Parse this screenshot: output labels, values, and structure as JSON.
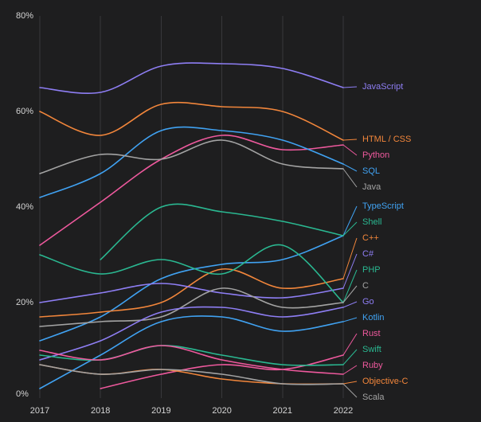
{
  "chart_data": {
    "type": "line",
    "title": "",
    "xlabel": "",
    "ylabel": "",
    "x": [
      2017,
      2018,
      2019,
      2020,
      2021,
      2022
    ],
    "ylim": [
      0,
      80
    ],
    "y_ticks": [
      0,
      20,
      40,
      60,
      80
    ],
    "y_tick_labels": [
      "0%",
      "20%",
      "40%",
      "60%",
      "80%"
    ],
    "grid": true,
    "series": [
      {
        "name": "JavaScript",
        "color": "#8e7ef4",
        "values": [
          65,
          64,
          69.5,
          70,
          69,
          65
        ]
      },
      {
        "name": "HTML / CSS",
        "color": "#f2863b",
        "values": [
          60,
          55,
          61.5,
          61,
          60,
          54
        ]
      },
      {
        "name": "Python",
        "color": "#ee599d",
        "values": [
          32,
          41,
          50,
          55,
          52,
          53
        ]
      },
      {
        "name": "SQL",
        "color": "#40a2f2",
        "values": [
          42,
          47,
          56,
          56,
          54,
          49
        ]
      },
      {
        "name": "Java",
        "color": "#a3a3a3",
        "values": [
          47,
          51,
          50,
          54,
          49,
          48
        ]
      },
      {
        "name": "TypeScript",
        "color": "#40a2f2",
        "values": [
          12,
          17,
          25,
          28,
          29,
          34
        ]
      },
      {
        "name": "Shell",
        "color": "#2ab891",
        "values": [
          null,
          29,
          40,
          39,
          37,
          34
        ]
      },
      {
        "name": "C++",
        "color": "#f2863b",
        "values": [
          17,
          18,
          20,
          27,
          23,
          25
        ]
      },
      {
        "name": "C#",
        "color": "#8e7ef4",
        "values": [
          20,
          22,
          24,
          22,
          21,
          23
        ]
      },
      {
        "name": "PHP",
        "color": "#2ab891",
        "values": [
          30,
          26,
          29,
          26,
          32,
          20
        ]
      },
      {
        "name": "C",
        "color": "#a3a3a3",
        "values": [
          15,
          16,
          17,
          23,
          19,
          20
        ]
      },
      {
        "name": "Go",
        "color": "#8e7ef4",
        "values": [
          8,
          12,
          18,
          19,
          17,
          19
        ]
      },
      {
        "name": "Kotlin",
        "color": "#40a2f2",
        "values": [
          2,
          9,
          16,
          17,
          14,
          16
        ]
      },
      {
        "name": "Rust",
        "color": "#ee599d",
        "values": [
          null,
          2,
          5,
          7,
          6,
          9
        ]
      },
      {
        "name": "Swift",
        "color": "#2ab891",
        "values": [
          9,
          8,
          11,
          9,
          7,
          7
        ]
      },
      {
        "name": "Ruby",
        "color": "#ee599d",
        "values": [
          10,
          8,
          11,
          8,
          6,
          5
        ]
      },
      {
        "name": "Objective-C",
        "color": "#f2863b",
        "values": [
          7,
          5,
          6,
          4,
          3,
          3
        ]
      },
      {
        "name": "Scala",
        "color": "#a3a3a3",
        "values": [
          7,
          5,
          6,
          5,
          3,
          3
        ]
      }
    ]
  }
}
